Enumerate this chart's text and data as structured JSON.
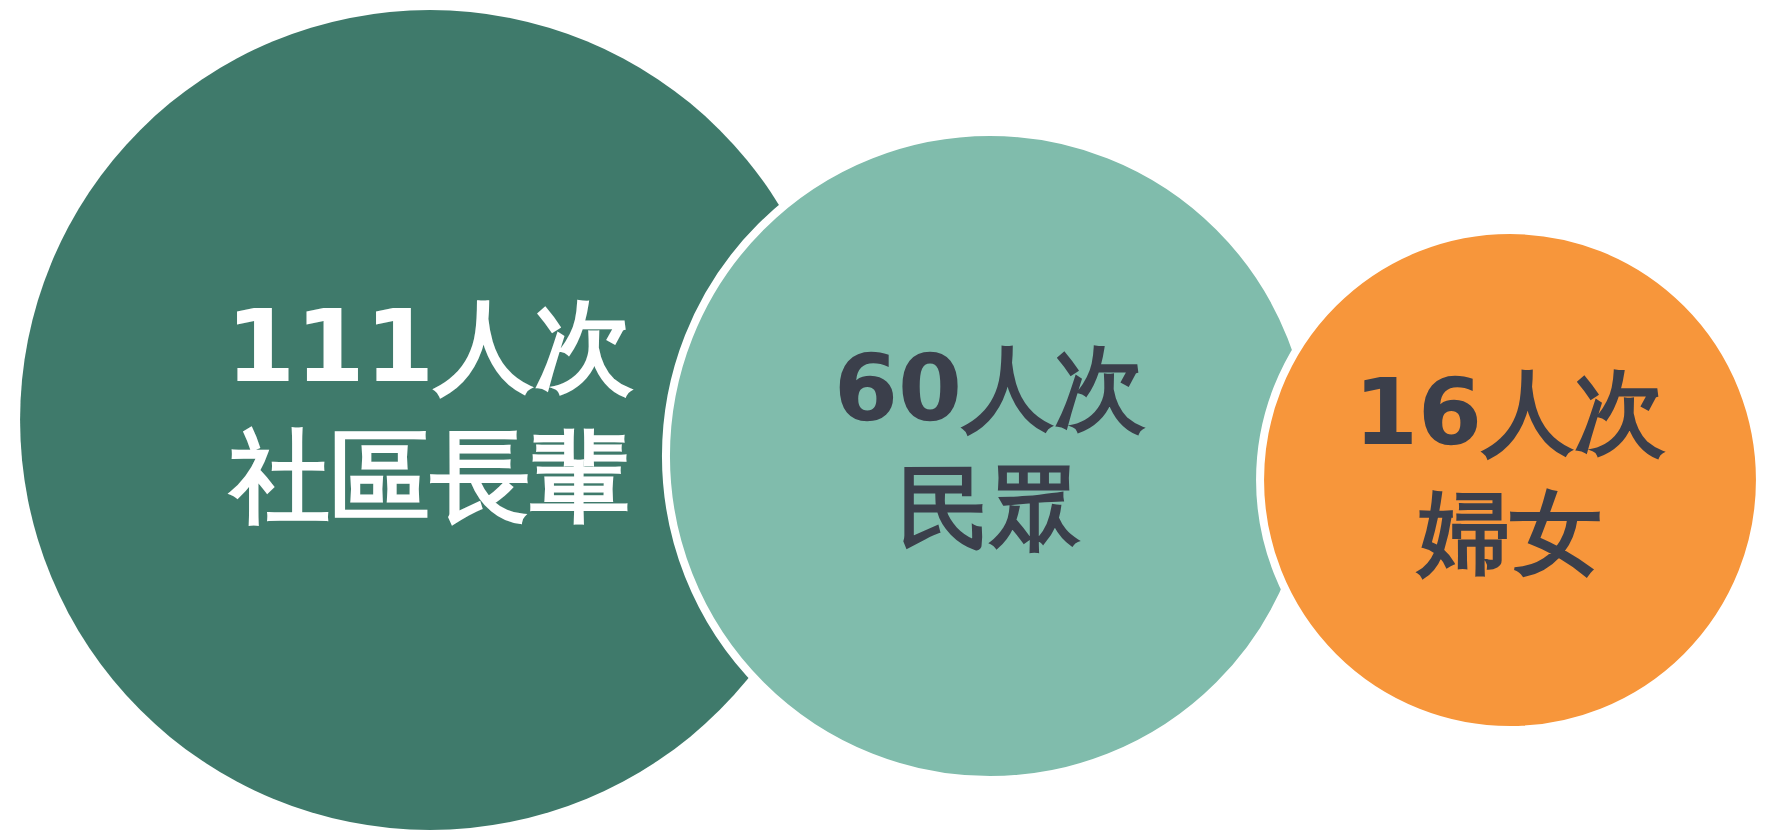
{
  "chart_data": {
    "type": "other",
    "categories": [
      "社區長輩",
      "民眾",
      "婦女"
    ],
    "values": [
      111,
      60,
      16
    ],
    "value_labels": [
      "111人次",
      "60人次",
      "16人次"
    ],
    "colors": [
      "#3f7a6b",
      "#80bcac",
      "#f7963b"
    ]
  }
}
